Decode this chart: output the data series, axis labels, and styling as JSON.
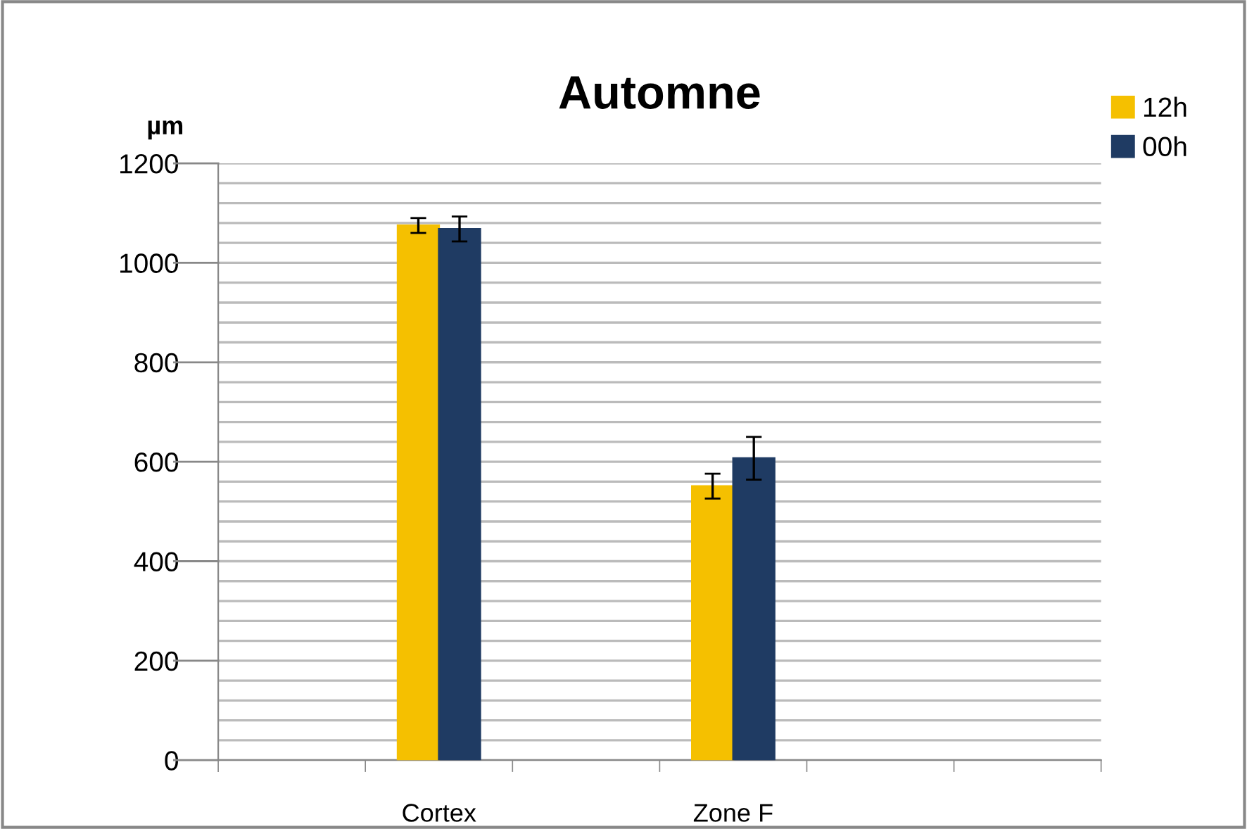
{
  "chart_data": {
    "type": "bar",
    "title": "Automne",
    "ylabel": "µm",
    "categories": [
      null,
      "Cortex",
      null,
      "Zone F",
      null,
      null
    ],
    "series": [
      {
        "name": "12h",
        "color": "#f5c000",
        "values": [
          null,
          1075,
          null,
          551,
          null,
          null
        ],
        "errors": [
          null,
          15,
          null,
          25,
          null,
          null
        ]
      },
      {
        "name": "00h",
        "color": "#1f3b63",
        "values": [
          null,
          1068,
          null,
          607,
          null,
          null
        ],
        "errors": [
          null,
          25,
          null,
          43,
          null,
          null
        ]
      }
    ],
    "ylim": [
      0,
      1200
    ],
    "yticks": [
      0,
      {
        "value": 40,
        "label": null
      },
      {
        "value": 80,
        "label": null
      },
      {
        "value": 120,
        "label": null
      },
      {
        "value": 160,
        "label": null
      },
      200,
      {
        "value": 240,
        "label": null
      },
      {
        "value": 280,
        "label": null
      },
      {
        "value": 320,
        "label": null
      },
      {
        "value": 360,
        "label": null
      },
      400,
      {
        "value": 440,
        "label": null
      },
      {
        "value": 480,
        "label": null
      },
      {
        "value": 520,
        "label": null
      },
      {
        "value": 560,
        "label": null
      },
      600,
      {
        "value": 640,
        "label": null
      },
      {
        "value": 680,
        "label": null
      },
      {
        "value": 720,
        "label": null
      },
      {
        "value": 760,
        "label": null
      },
      800,
      {
        "value": 840,
        "label": null
      },
      {
        "value": 880,
        "label": null
      },
      {
        "value": 920,
        "label": null
      },
      {
        "value": 960,
        "label": null
      },
      1000,
      {
        "value": 1040,
        "label": null
      },
      {
        "value": 1080,
        "label": null
      },
      {
        "value": 1120,
        "label": null
      },
      {
        "value": 1160,
        "label": null
      },
      1200
    ],
    "grid": "y",
    "legend": "top right"
  }
}
